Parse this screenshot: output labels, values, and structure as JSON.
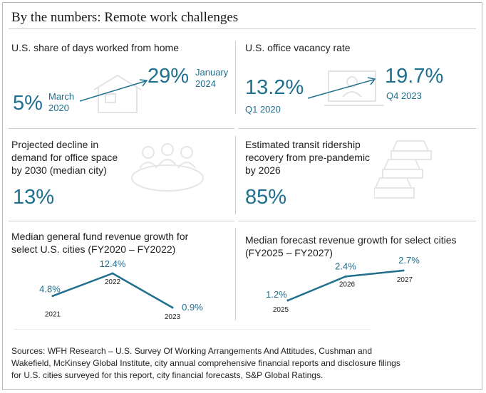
{
  "title": "By the numbers: Remote work challenges",
  "panels": {
    "wfh": {
      "label": "U.S. share of days worked from home",
      "start_value": "5%",
      "start_date_1": "March",
      "start_date_2": "2020",
      "end_value": "29%",
      "end_date_1": "January",
      "end_date_2": "2024",
      "icon": "house-icon"
    },
    "vacancy": {
      "label": "U.S. office vacancy rate",
      "start_value": "13.2%",
      "start_date": "Q1 2020",
      "end_value": "19.7%",
      "end_date": "Q4 2023",
      "icon": "laptop-user-icon"
    },
    "office_demand": {
      "label_lines": [
        "Projected decline in",
        "demand for office space",
        "by 2030 (median city)"
      ],
      "value": "13%",
      "icon": "meeting-table-icon"
    },
    "transit": {
      "label_lines": [
        "Estimated transit ridership",
        "recovery from pre-pandemic",
        "by 2026"
      ],
      "value": "85%",
      "icon": "cars-icon"
    }
  },
  "accent_color": "#1f6f8f",
  "chart_data": [
    {
      "type": "line",
      "title_lines": [
        "Median general fund revenue growth for",
        "select U.S. cities (FY2020 – FY2022)"
      ],
      "x": [
        "2021",
        "2022",
        "2023"
      ],
      "y": [
        4.8,
        12.4,
        0.9
      ],
      "data_labels": [
        "4.8%",
        "12.4%",
        "0.9%"
      ]
    },
    {
      "type": "line",
      "title_lines": [
        "Median forecast revenue growth for select cities",
        "(FY2025 – FY2027)"
      ],
      "x": [
        "2025",
        "2026",
        "2027"
      ],
      "y": [
        1.2,
        2.4,
        2.7
      ],
      "data_labels": [
        "1.2%",
        "2.4%",
        "2.7%"
      ]
    }
  ],
  "sources_text": "Sources: WFH Research – U.S. Survey Of Working Arrangements And Attitudes, Cushman and Wakefield, McKinsey Global Institute, city annual comprehensive financial reports and disclosure filings for U.S. cities surveyed for this report, city financial forecasts, S&P Global Ratings."
}
